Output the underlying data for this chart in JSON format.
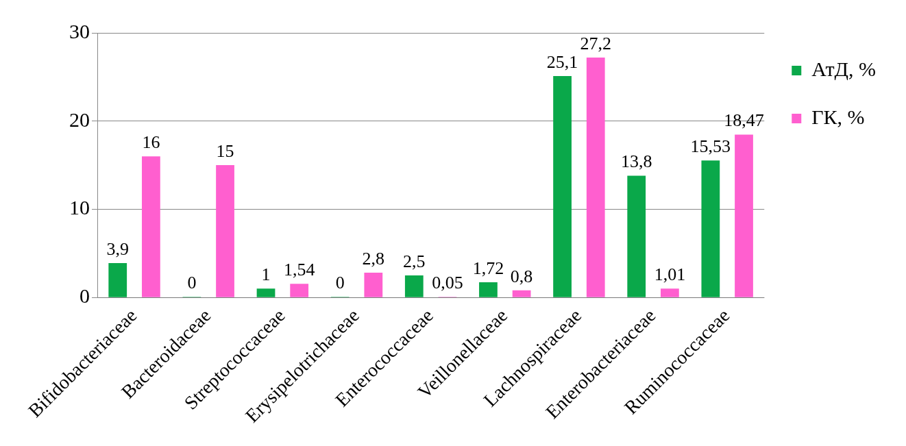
{
  "chart_data": {
    "type": "bar",
    "categories": [
      "Bifidobacteriaceae",
      "Bacteroidaceae",
      "Streptococcaceae",
      "Erysipelotrichaceae",
      "Enterococcaceae",
      "Veillonellaceae",
      "Lachnospiraceae",
      "Enterobacteriaceae",
      "Ruminococcaceae"
    ],
    "series": [
      {
        "name": "АтД, %",
        "color": "#0aa84a",
        "values": [
          3.9,
          0,
          1,
          0,
          2.5,
          1.72,
          25.1,
          13.8,
          15.53
        ],
        "value_labels": [
          "3,9",
          "0",
          "1",
          "0",
          "2,5",
          "1,72",
          "25,1",
          "13,8",
          "15,53"
        ]
      },
      {
        "name": "ГК, %",
        "color": "#ff5fcf",
        "values": [
          16,
          15,
          1.54,
          2.8,
          0.05,
          0.8,
          27.2,
          1.01,
          18.47
        ],
        "value_labels": [
          "16",
          "15",
          "1,54",
          "2,8",
          "0,05",
          "0,8",
          "27,2",
          "1,01",
          "18,47"
        ]
      }
    ],
    "ylim": [
      0,
      30
    ],
    "yticks": [
      0,
      10,
      20,
      30
    ],
    "grid": "y",
    "legend": "right"
  }
}
